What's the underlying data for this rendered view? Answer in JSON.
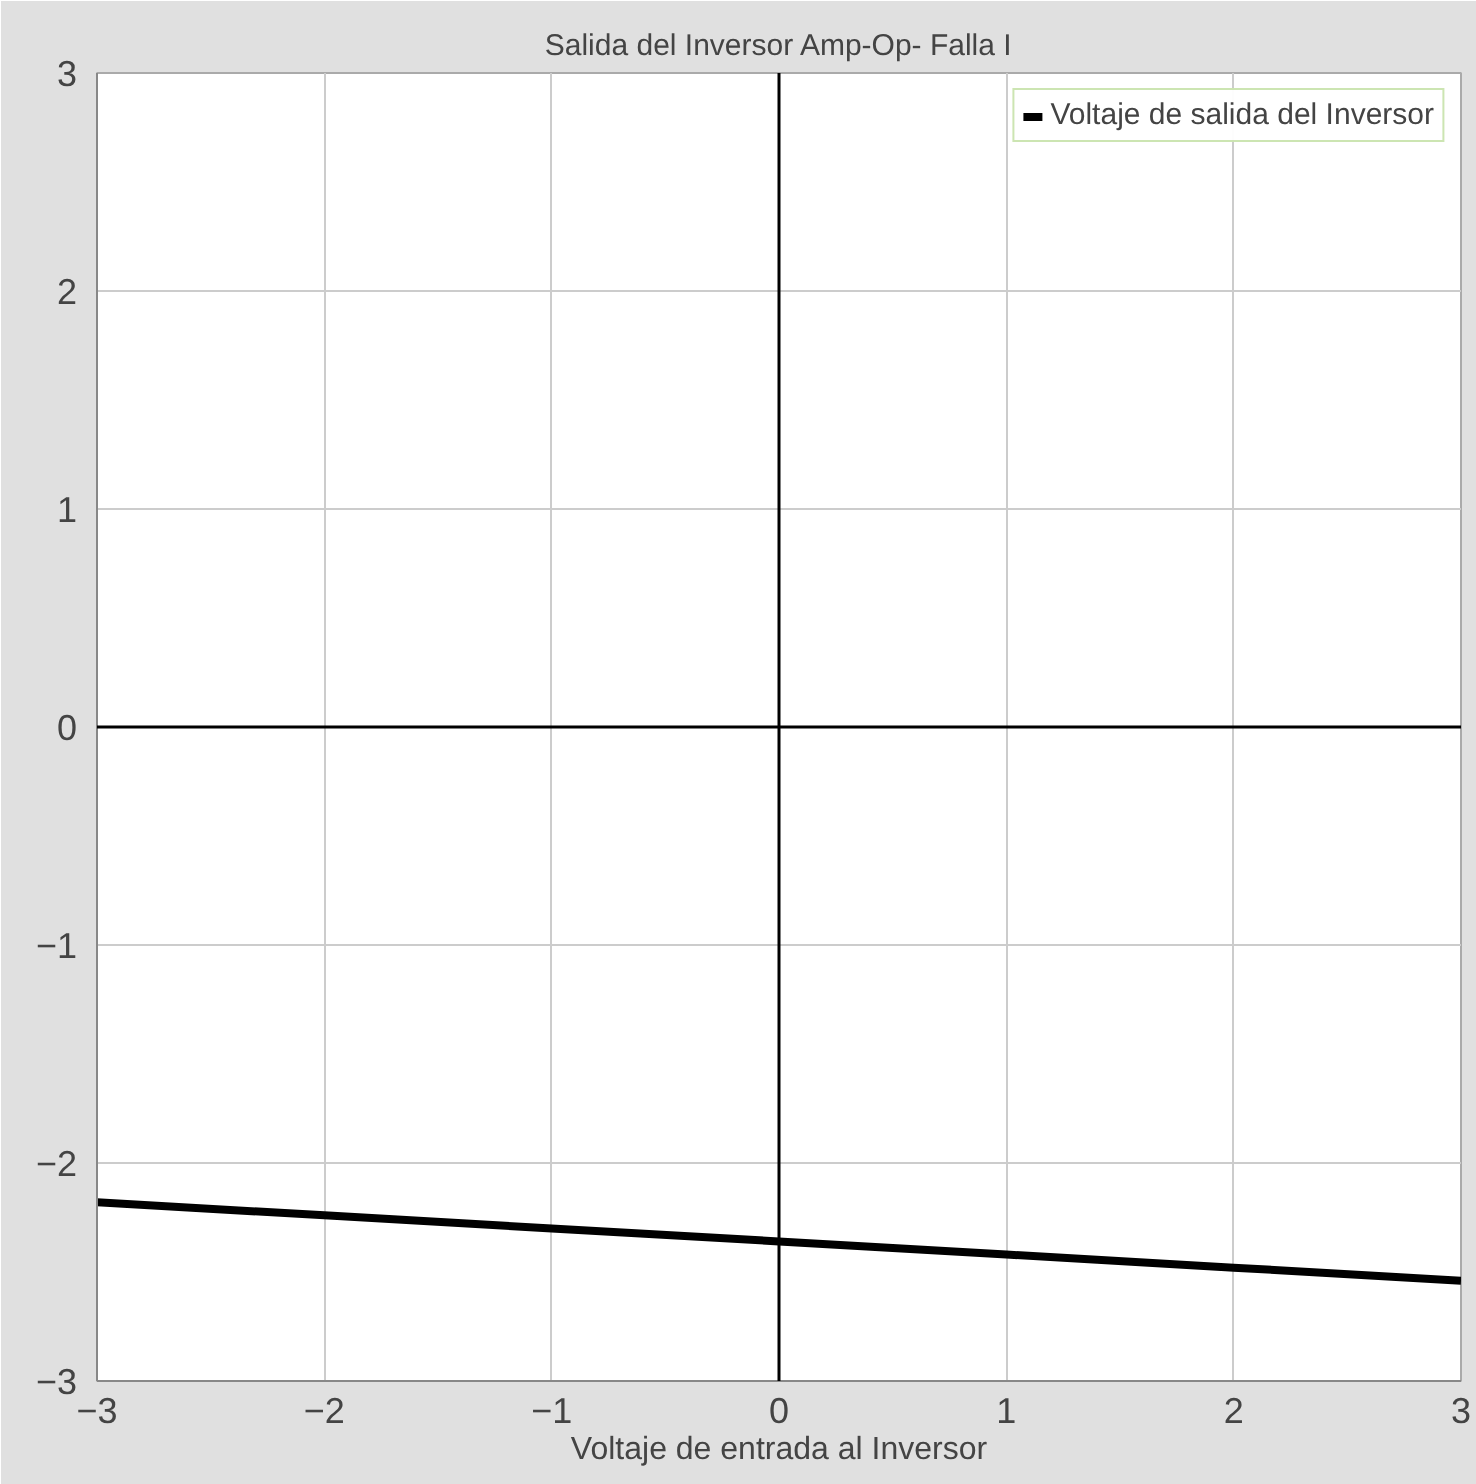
{
  "chart_data": {
    "type": "line",
    "title": "Salida del Inversor Amp-Op- Falla I",
    "xlabel": "Voltaje de entrada al Inversor",
    "x": [
      -3,
      -2,
      -1,
      0,
      1,
      2,
      3
    ],
    "series": [
      {
        "name": "Voltaje de salida del Inversor",
        "color": "#000000",
        "values": [
          -2.18,
          -2.24,
          -2.3,
          -2.36,
          -2.42,
          -2.48,
          -2.54
        ]
      }
    ],
    "xlim": [
      -3,
      3
    ],
    "ylim": [
      -3,
      3
    ],
    "xticks": [
      -3,
      -2,
      -1,
      0,
      1,
      2,
      3
    ],
    "yticks": [
      -3,
      -2,
      -1,
      0,
      1,
      2,
      3
    ],
    "grid": true,
    "legend": "top right",
    "marker": "none",
    "line_style": "solid"
  }
}
